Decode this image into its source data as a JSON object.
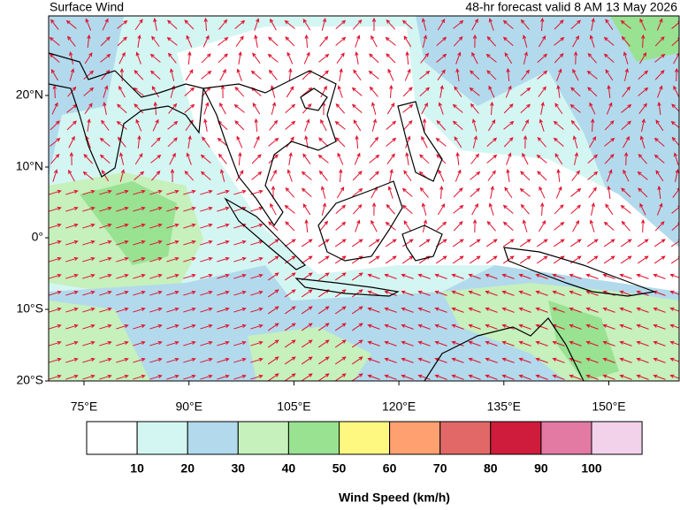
{
  "header": {
    "title": "Surface Wind",
    "subtitle": "48-hr forecast valid 8 AM 13 May 2026"
  },
  "map": {
    "lat_labels": [
      "20°N",
      "10°N",
      "0°",
      "10°S",
      "20°S"
    ],
    "lon_labels": [
      "75°E",
      "90°E",
      "105°E",
      "120°E",
      "135°E",
      "150°E"
    ]
  },
  "colorbar": {
    "colors": [
      "#ffffff",
      "#d4f6f2",
      "#b2daec",
      "#c6f0bc",
      "#98e292",
      "#fff880",
      "#ffa070",
      "#e26868",
      "#d01c3c",
      "#e27aa4",
      "#f2d2ea"
    ],
    "labels": [
      "10",
      "20",
      "30",
      "40",
      "50",
      "60",
      "70",
      "80",
      "90",
      "100"
    ],
    "title": "Wind Speed (km/h)"
  }
}
